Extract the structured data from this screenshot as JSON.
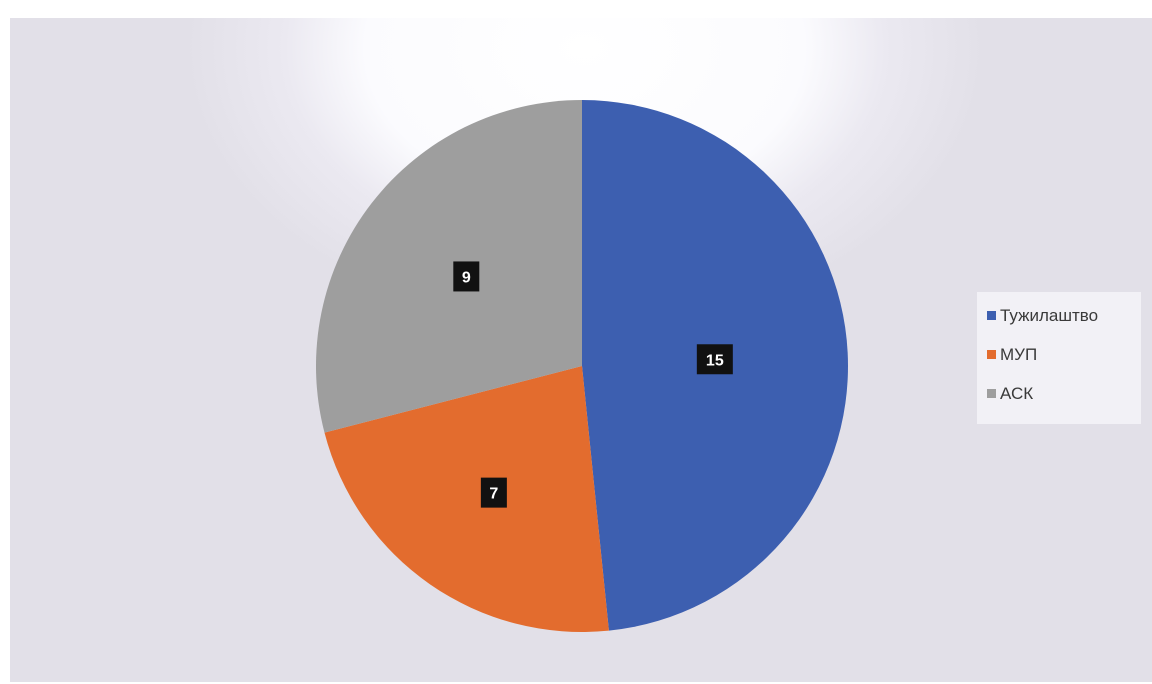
{
  "chart_data": {
    "type": "pie",
    "title": "",
    "categories": [
      "Тужилаштво",
      "МУП",
      "АСК"
    ],
    "values": [
      15,
      7,
      9
    ],
    "colors": [
      "#3d5fb0",
      "#e36c2e",
      "#9e9e9e"
    ],
    "data_labels": [
      "15",
      "7",
      "9"
    ],
    "legend": {
      "placement": "right",
      "entries": [
        "Тужилаштво",
        "МУП",
        "АСК"
      ]
    }
  }
}
